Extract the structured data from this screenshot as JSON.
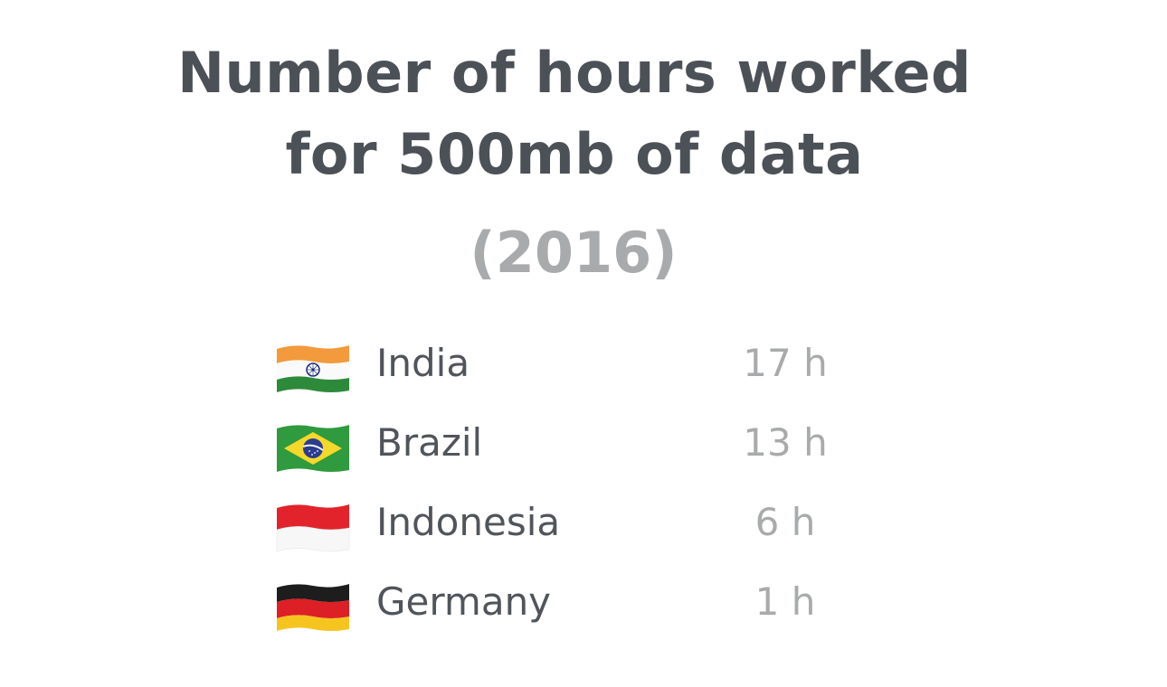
{
  "chart_data": {
    "type": "table",
    "title_lines": [
      "Number of hours worked",
      "for 500mb of data"
    ],
    "subtitle": "(2016)",
    "rows": [
      {
        "country": "India",
        "flag": "india-flag-icon",
        "hours": 17,
        "label": "17 h"
      },
      {
        "country": "Brazil",
        "flag": "brazil-flag-icon",
        "hours": 13,
        "label": "13 h"
      },
      {
        "country": "Indonesia",
        "flag": "indonesia-flag-icon",
        "hours": 6,
        "label": "6 h"
      },
      {
        "country": "Germany",
        "flag": "germany-flag-icon",
        "hours": 1,
        "label": "1 h"
      }
    ]
  },
  "colors": {
    "title": "#4c5157",
    "subtitle": "#a8aaab",
    "country_text": "#50555b",
    "value_text": "#a8aaab"
  }
}
